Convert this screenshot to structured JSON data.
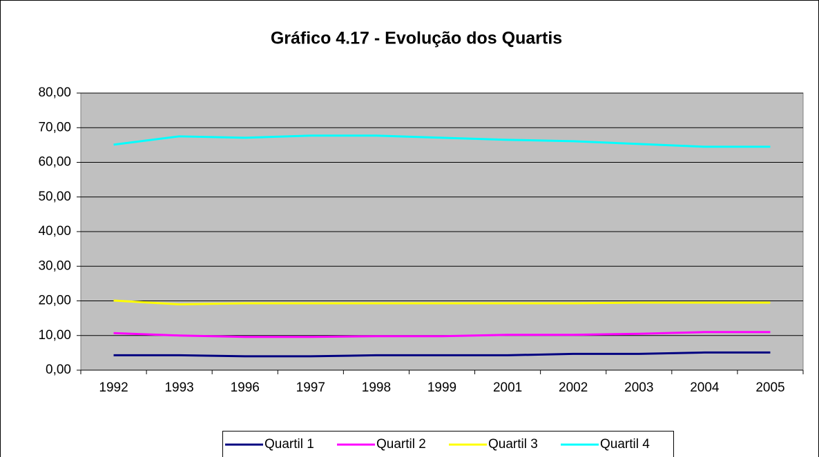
{
  "chart_data": {
    "type": "line",
    "title": "Gráfico 4.17 - Evolução dos Quartis",
    "categories": [
      "1992",
      "1993",
      "1996",
      "1997",
      "1998",
      "1999",
      "2001",
      "2002",
      "2003",
      "2004",
      "2005"
    ],
    "series": [
      {
        "name": "Quartil 1",
        "color": "#000080",
        "values": [
          4.3,
          4.3,
          4.0,
          4.0,
          4.3,
          4.3,
          4.3,
          4.7,
          4.7,
          5.1,
          5.1
        ]
      },
      {
        "name": "Quartil 2",
        "color": "#ff00ff",
        "values": [
          10.7,
          10.0,
          9.6,
          9.6,
          9.8,
          9.8,
          10.2,
          10.2,
          10.5,
          11.0,
          11.0
        ]
      },
      {
        "name": "Quartil 3",
        "color": "#ffff00",
        "values": [
          20.1,
          19.0,
          19.3,
          19.3,
          19.3,
          19.3,
          19.3,
          19.3,
          19.5,
          19.5,
          19.5
        ]
      },
      {
        "name": "Quartil 4",
        "color": "#00ffff",
        "values": [
          65.1,
          67.5,
          67.1,
          67.7,
          67.7,
          67.1,
          66.5,
          66.1,
          65.3,
          64.5,
          64.5
        ]
      }
    ],
    "ylim": [
      0,
      80
    ],
    "yticks": [
      {
        "value": 0,
        "label": "0,00"
      },
      {
        "value": 10,
        "label": "10,00"
      },
      {
        "value": 20,
        "label": "20,00"
      },
      {
        "value": 30,
        "label": "30,00"
      },
      {
        "value": 40,
        "label": "40,00"
      },
      {
        "value": 50,
        "label": "50,00"
      },
      {
        "value": 60,
        "label": "60,00"
      },
      {
        "value": 70,
        "label": "70,00"
      },
      {
        "value": 80,
        "label": "80,00"
      }
    ],
    "grid": true,
    "legend": "bottom"
  }
}
